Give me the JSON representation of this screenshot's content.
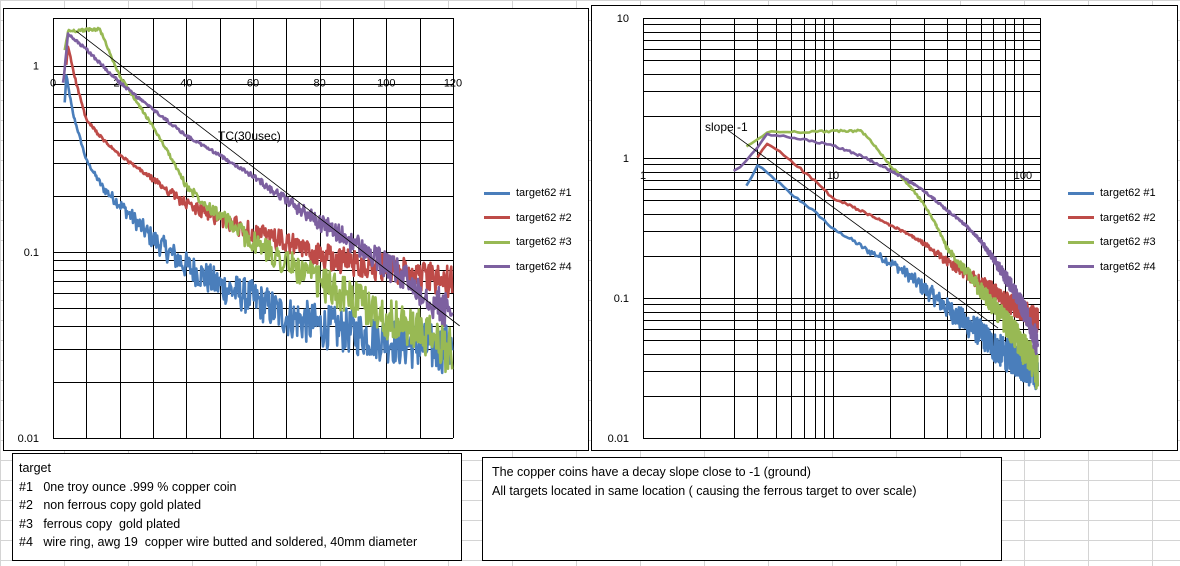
{
  "chart_data": [
    {
      "type": "line",
      "xscale": "linear",
      "yscale": "log",
      "xlim": [
        0,
        120
      ],
      "ylim": [
        0.01,
        1.8
      ],
      "x_ticks": [
        "0",
        "20",
        "40",
        "60",
        "80",
        "100",
        "120"
      ],
      "y_ticks": [
        "0.01",
        "0.1",
        "1"
      ],
      "grid": true,
      "legend_position": "right",
      "annotation": {
        "text": "TC(30usec)",
        "line": [
          [
            7,
            1.53
          ],
          [
            122,
            0.04
          ]
        ]
      },
      "series": [
        {
          "name": "target62 #1",
          "color": "#4a7ebb",
          "points": [
            [
              3.5,
              0.63
            ],
            [
              4,
              0.88
            ],
            [
              6,
              0.55
            ],
            [
              10,
              0.31
            ],
            [
              15,
              0.22
            ],
            [
              20,
              0.18
            ],
            [
              30,
              0.117
            ],
            [
              40,
              0.084
            ],
            [
              50,
              0.066
            ],
            [
              60,
              0.056
            ],
            [
              70,
              0.045
            ],
            [
              80,
              0.04
            ],
            [
              90,
              0.037
            ],
            [
              100,
              0.034
            ],
            [
              110,
              0.031
            ],
            [
              120,
              0.03
            ]
          ]
        },
        {
          "name": "target62 #2",
          "color": "#be4b48",
          "points": [
            [
              4,
              1.0
            ],
            [
              4.5,
              1.27
            ],
            [
              7,
              0.8
            ],
            [
              10,
              0.51
            ],
            [
              15,
              0.4
            ],
            [
              20,
              0.33
            ],
            [
              30,
              0.245
            ],
            [
              40,
              0.18
            ],
            [
              50,
              0.15
            ],
            [
              60,
              0.127
            ],
            [
              70,
              0.112
            ],
            [
              80,
              0.095
            ],
            [
              90,
              0.088
            ],
            [
              100,
              0.081
            ],
            [
              110,
              0.074
            ],
            [
              120,
              0.068
            ]
          ]
        },
        {
          "name": "target62 #3",
          "color": "#98b954",
          "points": [
            [
              3.5,
              1.2
            ],
            [
              4.5,
              1.53
            ],
            [
              14,
              1.57
            ],
            [
              20,
              0.88
            ],
            [
              30,
              0.47
            ],
            [
              35,
              0.33
            ],
            [
              40,
              0.225
            ],
            [
              50,
              0.157
            ],
            [
              60,
              0.112
            ],
            [
              70,
              0.088
            ],
            [
              80,
              0.068
            ],
            [
              90,
              0.056
            ],
            [
              100,
              0.044
            ],
            [
              110,
              0.037
            ],
            [
              120,
              0.029
            ]
          ]
        },
        {
          "name": "target62 #4",
          "color": "#7d60a0",
          "points": [
            [
              3,
              0.8
            ],
            [
              3.5,
              0.95
            ],
            [
              4.5,
              1.47
            ],
            [
              10,
              1.22
            ],
            [
              20,
              0.81
            ],
            [
              30,
              0.58
            ],
            [
              40,
              0.42
            ],
            [
              50,
              0.33
            ],
            [
              60,
              0.255
            ],
            [
              70,
              0.19
            ],
            [
              80,
              0.144
            ],
            [
              90,
              0.112
            ],
            [
              100,
              0.084
            ],
            [
              110,
              0.063
            ],
            [
              120,
              0.045
            ]
          ]
        }
      ]
    },
    {
      "type": "line",
      "xscale": "log",
      "yscale": "log",
      "xlim": [
        1,
        123
      ],
      "ylim": [
        0.01,
        10
      ],
      "x_ticks": [
        "1",
        "10",
        "100"
      ],
      "y_ticks": [
        "0.01",
        "0.1",
        "1",
        "10"
      ],
      "grid": true,
      "legend_position": "right",
      "annotation": {
        "text": "slope -1",
        "line": [
          [
            2.8,
            1.58
          ],
          [
            74,
            0.061
          ]
        ]
      },
      "series_same_as_chart": 0,
      "series_names": [
        "target62 #1",
        "target62 #2",
        "target62 #3",
        "target62 #4"
      ]
    }
  ],
  "notes_left": {
    "title": "target",
    "items": [
      {
        "id": "#1",
        "text": "0ne troy ounce .999 % copper coin"
      },
      {
        "id": "#2",
        "text": "non ferrous copy gold plated"
      },
      {
        "id": "#3",
        "text": "ferrous copy  gold plated"
      },
      {
        "id": "#4",
        "text": "wire ring, awg 19  copper wire butted and soldered, 40mm diameter"
      }
    ]
  },
  "notes_right": {
    "lines": [
      "The copper coins have a decay slope close to -1 (ground)",
      "All targets located in same location ( causing the ferrous target to over scale)"
    ]
  }
}
